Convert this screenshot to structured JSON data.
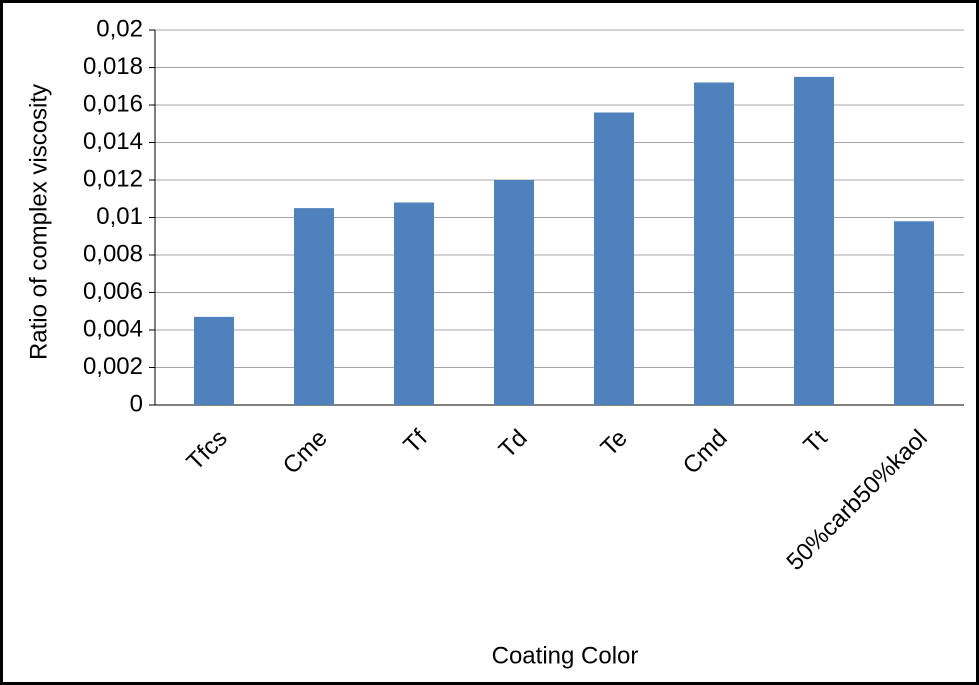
{
  "chart_data": {
    "type": "bar",
    "x_label": "Coating Color",
    "y_label": "Ratio of  complex viscosity",
    "categories": [
      "Tfcs",
      "Cme",
      "Tf",
      "Td",
      "Te",
      "Cmd",
      "Tt",
      "50%carb50%kaol"
    ],
    "values": [
      0.0047,
      0.0105,
      0.0108,
      0.012,
      0.0156,
      0.0172,
      0.0175,
      0.0098
    ],
    "color": "#4f81bd",
    "ylim": [
      0,
      0.02
    ],
    "yticks": [
      0,
      {
        "value": 0.002,
        "label": "0,002"
      },
      {
        "value": 0.004,
        "label": "0,004"
      },
      {
        "value": 0.006,
        "label": "0,006"
      },
      {
        "value": 0.008,
        "label": "0,008"
      },
      {
        "value": 0.01,
        "label": "0,01"
      },
      {
        "value": 0.012,
        "label": "0,012"
      },
      {
        "value": 0.014,
        "label": "0,014"
      },
      {
        "value": 0.016,
        "label": "0,016"
      },
      {
        "value": 0.018,
        "label": "0,018"
      },
      {
        "value": 0.02,
        "label": "0,02"
      }
    ],
    "grid": true
  }
}
